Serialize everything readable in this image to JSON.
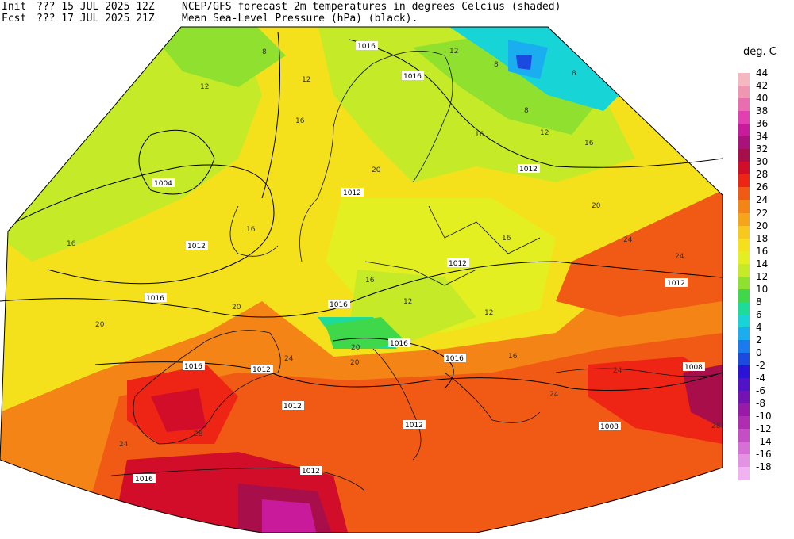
{
  "header": {
    "init_label": "Init",
    "init_value": "??? 15 JUL 2025 12Z",
    "fcst_label": "Fcst",
    "fcst_value": "??? 17 JUL 2025 21Z",
    "title_line1": "NCEP/GFS forecast 2m temperatures in degrees Celcius (shaded)",
    "title_line2": "Mean Sea-Level Pressure (hPa) (black)."
  },
  "legend": {
    "title": "deg. C",
    "entries": [
      {
        "label": "44",
        "color": "#f5b7c0"
      },
      {
        "label": "42",
        "color": "#ef97b2"
      },
      {
        "label": "40",
        "color": "#ea6db0"
      },
      {
        "label": "38",
        "color": "#e23fb0"
      },
      {
        "label": "36",
        "color": "#c81a9a"
      },
      {
        "label": "34",
        "color": "#a8127a"
      },
      {
        "label": "32",
        "color": "#a80e4a"
      },
      {
        "label": "30",
        "color": "#d10d2a"
      },
      {
        "label": "28",
        "color": "#ee2415"
      },
      {
        "label": "26",
        "color": "#f05a14"
      },
      {
        "label": "24",
        "color": "#f58416"
      },
      {
        "label": "22",
        "color": "#f6a51a"
      },
      {
        "label": "20",
        "color": "#f7c81e"
      },
      {
        "label": "18",
        "color": "#f4e11c"
      },
      {
        "label": "16",
        "color": "#e4ef21"
      },
      {
        "label": "14",
        "color": "#c5ea28"
      },
      {
        "label": "12",
        "color": "#8fe02f"
      },
      {
        "label": "10",
        "color": "#3fd84a"
      },
      {
        "label": "8",
        "color": "#1ddc9a"
      },
      {
        "label": "6",
        "color": "#17d4d6"
      },
      {
        "label": "4",
        "color": "#1aaef0"
      },
      {
        "label": "2",
        "color": "#1a7af0"
      },
      {
        "label": "0",
        "color": "#1a4ae0"
      },
      {
        "label": "-2",
        "color": "#2a12d8"
      },
      {
        "label": "-4",
        "color": "#5212c8"
      },
      {
        "label": "-6",
        "color": "#7412b4"
      },
      {
        "label": "-8",
        "color": "#9a1aa8"
      },
      {
        "label": "-10",
        "color": "#b02cb0"
      },
      {
        "label": "-12",
        "color": "#c44ec4"
      },
      {
        "label": "-14",
        "color": "#d670d6"
      },
      {
        "label": "-16",
        "color": "#e492e4"
      },
      {
        "label": "-18",
        "color": "#f0b2f0"
      }
    ]
  },
  "map": {
    "pressure_labels": [
      "1016",
      "1016",
      "1012",
      "1004",
      "1012",
      "1012",
      "1016",
      "1016",
      "1012",
      "1012",
      "1016",
      "1012",
      "1016",
      "1016",
      "1012",
      "1012",
      "1008",
      "1016",
      "1012",
      "1008"
    ],
    "temperature_labels": [
      "8",
      "12",
      "12",
      "16",
      "12",
      "8",
      "8",
      "12",
      "16",
      "16",
      "20",
      "20",
      "16",
      "16",
      "20",
      "24",
      "24",
      "20",
      "20",
      "20",
      "16",
      "16",
      "16",
      "12",
      "12",
      "24",
      "24",
      "24",
      "24",
      "28",
      "28",
      "8"
    ]
  }
}
